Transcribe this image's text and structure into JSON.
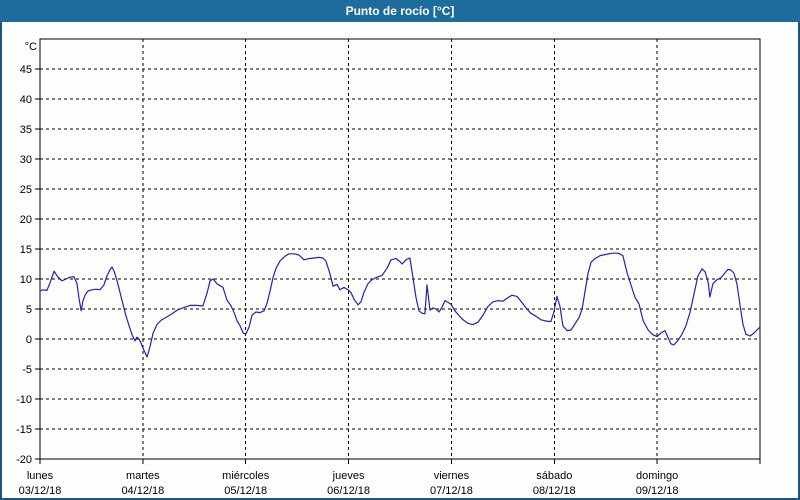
{
  "window": {
    "title": "Punto de rocío [°C]"
  },
  "colors": {
    "titlebar_bg": "#1e6b9e",
    "titlebar_text": "#ffffff",
    "window_border": "#1a567f",
    "plot_bg": "#fdfefc",
    "axis": "#000000",
    "label_text": "#000000"
  },
  "chart_data": {
    "type": "line",
    "title": "Punto de rocío [°C]",
    "y_unit": "°C",
    "ylim": [
      -20,
      50
    ],
    "y_tick_labels": [
      45,
      40,
      35,
      30,
      25,
      20,
      15,
      10,
      5,
      0,
      -5,
      -10,
      -15,
      -20
    ],
    "x_hours_total": 168,
    "grid": true,
    "legend_position": "none",
    "x_axis_days": [
      {
        "name": "lunes",
        "date": "03/12/18"
      },
      {
        "name": "martes",
        "date": "04/12/18"
      },
      {
        "name": "miércoles",
        "date": "05/12/18"
      },
      {
        "name": "jueves",
        "date": "06/12/18"
      },
      {
        "name": "viernes",
        "date": "07/12/18"
      },
      {
        "name": "sábado",
        "date": "08/12/18"
      },
      {
        "name": "domingo",
        "date": "09/12/18"
      }
    ],
    "series": [
      {
        "name": "Punto de rocío",
        "color": "#2222b2",
        "points_hours_degC": [
          [
            0,
            8.0
          ],
          [
            0.7,
            8.2
          ],
          [
            1.6,
            8.1
          ],
          [
            2.3,
            9.3
          ],
          [
            3.3,
            11.3
          ],
          [
            4.0,
            10.5
          ],
          [
            5.1,
            9.7
          ],
          [
            6.1,
            10.0
          ],
          [
            7.0,
            10.3
          ],
          [
            7.9,
            10.4
          ],
          [
            8.6,
            9.3
          ],
          [
            9.1,
            6.8
          ],
          [
            9.6,
            4.7
          ],
          [
            10.0,
            6.3
          ],
          [
            10.5,
            7.3
          ],
          [
            11.2,
            8.0
          ],
          [
            12.1,
            8.2
          ],
          [
            13.1,
            8.3
          ],
          [
            14.0,
            8.2
          ],
          [
            14.9,
            9.0
          ],
          [
            15.6,
            10.5
          ],
          [
            16.3,
            11.5
          ],
          [
            16.8,
            12.0
          ],
          [
            17.3,
            11.3
          ],
          [
            18.0,
            9.7
          ],
          [
            18.7,
            7.7
          ],
          [
            19.4,
            5.7
          ],
          [
            20.1,
            3.8
          ],
          [
            20.8,
            2.2
          ],
          [
            21.5,
            0.7
          ],
          [
            22.2,
            -0.3
          ],
          [
            22.6,
            0.3
          ],
          [
            23.1,
            0.0
          ],
          [
            23.6,
            -0.7
          ],
          [
            24.0,
            -1.5
          ],
          [
            25.0,
            -3.0
          ],
          [
            25.7,
            -1.2
          ],
          [
            26.4,
            1.0
          ],
          [
            27.3,
            2.4
          ],
          [
            28.2,
            3.1
          ],
          [
            29.4,
            3.6
          ],
          [
            30.6,
            4.1
          ],
          [
            32.0,
            4.8
          ],
          [
            33.4,
            5.2
          ],
          [
            35.0,
            5.6
          ],
          [
            36.6,
            5.6
          ],
          [
            38.0,
            5.5
          ],
          [
            39.0,
            7.7
          ],
          [
            39.7,
            9.7
          ],
          [
            40.4,
            10.0
          ],
          [
            41.3,
            9.2
          ],
          [
            42.7,
            8.6
          ],
          [
            43.6,
            6.5
          ],
          [
            44.6,
            5.5
          ],
          [
            45.3,
            4.4
          ],
          [
            46.0,
            3.0
          ],
          [
            46.7,
            2.2
          ],
          [
            47.4,
            1.0
          ],
          [
            48.0,
            0.8
          ],
          [
            48.8,
            2.0
          ],
          [
            49.5,
            4.0
          ],
          [
            50.4,
            4.5
          ],
          [
            51.3,
            4.4
          ],
          [
            52.3,
            4.7
          ],
          [
            53.0,
            6.0
          ],
          [
            53.7,
            8.0
          ],
          [
            54.4,
            10.3
          ],
          [
            55.1,
            11.8
          ],
          [
            56.0,
            13.0
          ],
          [
            57.2,
            13.8
          ],
          [
            58.1,
            14.2
          ],
          [
            59.3,
            14.2
          ],
          [
            60.4,
            14.0
          ],
          [
            61.6,
            13.2
          ],
          [
            62.8,
            13.4
          ],
          [
            63.9,
            13.5
          ],
          [
            65.1,
            13.6
          ],
          [
            66.0,
            13.5
          ],
          [
            66.7,
            13.0
          ],
          [
            67.7,
            10.8
          ],
          [
            68.4,
            8.8
          ],
          [
            69.3,
            9.1
          ],
          [
            70.0,
            8.2
          ],
          [
            70.9,
            8.6
          ],
          [
            71.9,
            8.2
          ],
          [
            72.6,
            7.7
          ],
          [
            73.3,
            6.6
          ],
          [
            74.2,
            5.7
          ],
          [
            74.9,
            6.2
          ],
          [
            75.6,
            7.8
          ],
          [
            76.5,
            9.2
          ],
          [
            77.5,
            9.9
          ],
          [
            78.6,
            10.3
          ],
          [
            79.8,
            10.6
          ],
          [
            81.0,
            11.8
          ],
          [
            81.9,
            13.2
          ],
          [
            83.1,
            13.4
          ],
          [
            84.0,
            12.9
          ],
          [
            84.5,
            12.5
          ],
          [
            85.4,
            13.2
          ],
          [
            86.3,
            13.5
          ],
          [
            87.0,
            10.3
          ],
          [
            87.7,
            7.0
          ],
          [
            88.4,
            4.7
          ],
          [
            89.1,
            4.3
          ],
          [
            89.8,
            4.2
          ],
          [
            90.3,
            9.0
          ],
          [
            91.0,
            4.8
          ],
          [
            91.7,
            5.2
          ],
          [
            92.4,
            5.0
          ],
          [
            93.1,
            4.5
          ],
          [
            93.8,
            5.3
          ],
          [
            94.5,
            6.4
          ],
          [
            95.2,
            6.1
          ],
          [
            95.9,
            5.8
          ],
          [
            96.8,
            4.7
          ],
          [
            97.8,
            3.9
          ],
          [
            98.7,
            3.2
          ],
          [
            99.9,
            2.6
          ],
          [
            101.0,
            2.4
          ],
          [
            102.2,
            2.8
          ],
          [
            103.4,
            4.0
          ],
          [
            104.5,
            5.4
          ],
          [
            105.7,
            6.2
          ],
          [
            106.9,
            6.4
          ],
          [
            108.0,
            6.3
          ],
          [
            109.2,
            6.9
          ],
          [
            110.1,
            7.3
          ],
          [
            111.3,
            7.1
          ],
          [
            112.2,
            6.3
          ],
          [
            113.4,
            5.2
          ],
          [
            114.5,
            4.3
          ],
          [
            115.7,
            3.8
          ],
          [
            116.9,
            3.2
          ],
          [
            118.0,
            3.0
          ],
          [
            119.2,
            2.9
          ],
          [
            119.9,
            4.5
          ],
          [
            120.6,
            7.1
          ],
          [
            121.3,
            5.5
          ],
          [
            122.0,
            2.2
          ],
          [
            123.0,
            1.4
          ],
          [
            123.9,
            1.5
          ],
          [
            124.8,
            2.5
          ],
          [
            125.8,
            3.6
          ],
          [
            126.5,
            5.0
          ],
          [
            127.2,
            8.0
          ],
          [
            127.9,
            11.0
          ],
          [
            128.6,
            12.8
          ],
          [
            129.5,
            13.4
          ],
          [
            130.7,
            13.9
          ],
          [
            132.1,
            14.1
          ],
          [
            133.5,
            14.3
          ],
          [
            134.9,
            14.3
          ],
          [
            136.0,
            13.9
          ],
          [
            137.0,
            11.0
          ],
          [
            137.9,
            9.0
          ],
          [
            138.8,
            7.0
          ],
          [
            139.8,
            5.8
          ],
          [
            140.7,
            3.1
          ],
          [
            141.9,
            1.5
          ],
          [
            143.0,
            0.7
          ],
          [
            144.0,
            0.4
          ],
          [
            144.9,
            1.0
          ],
          [
            145.8,
            1.4
          ],
          [
            146.5,
            0.3
          ],
          [
            147.2,
            -0.8
          ],
          [
            147.9,
            -1.0
          ],
          [
            148.9,
            -0.2
          ],
          [
            149.8,
            0.8
          ],
          [
            150.7,
            2.2
          ],
          [
            151.7,
            4.5
          ],
          [
            152.6,
            7.5
          ],
          [
            153.5,
            10.5
          ],
          [
            154.5,
            11.7
          ],
          [
            155.2,
            11.2
          ],
          [
            155.9,
            9.5
          ],
          [
            156.3,
            7.0
          ],
          [
            157.0,
            9.2
          ],
          [
            158.0,
            9.9
          ],
          [
            158.9,
            10.2
          ],
          [
            159.8,
            11.0
          ],
          [
            160.5,
            11.6
          ],
          [
            161.2,
            11.5
          ],
          [
            161.9,
            11.0
          ],
          [
            162.6,
            9.2
          ],
          [
            163.3,
            5.8
          ],
          [
            164.0,
            2.5
          ],
          [
            164.7,
            0.8
          ],
          [
            165.7,
            0.5
          ],
          [
            166.6,
            1.0
          ],
          [
            167.3,
            1.5
          ],
          [
            168.0,
            2.0
          ]
        ]
      }
    ]
  }
}
